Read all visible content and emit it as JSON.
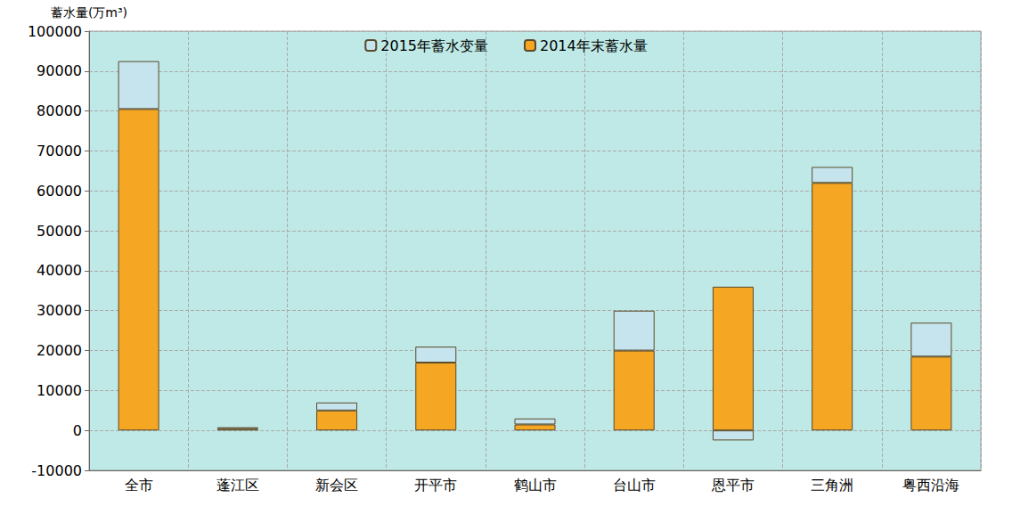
{
  "chart_data": {
    "type": "bar",
    "stacked": true,
    "y_label": "蓄水量(万m³)",
    "categories": [
      "全市",
      "蓬江区",
      "新会区",
      "开平市",
      "鹤山市",
      "台山市",
      "恩平市",
      "三角洲",
      "粤西沿海"
    ],
    "series": [
      {
        "name": "2015年蓄水变量",
        "color": "#c6e4ee",
        "values": [
          12000,
          400,
          2000,
          4000,
          1500,
          10000,
          -2500,
          4000,
          8500
        ]
      },
      {
        "name": "2014年末蓄水量",
        "color": "#f5a623",
        "values": [
          80500,
          400,
          5000,
          17000,
          1500,
          20000,
          36000,
          62000,
          18500
        ]
      }
    ],
    "ylim": [
      -10000,
      100000
    ],
    "yticks": [
      -10000,
      0,
      10000,
      20000,
      30000,
      40000,
      50000,
      60000,
      70000,
      80000,
      90000,
      100000
    ],
    "grid": true,
    "legend": "top"
  }
}
